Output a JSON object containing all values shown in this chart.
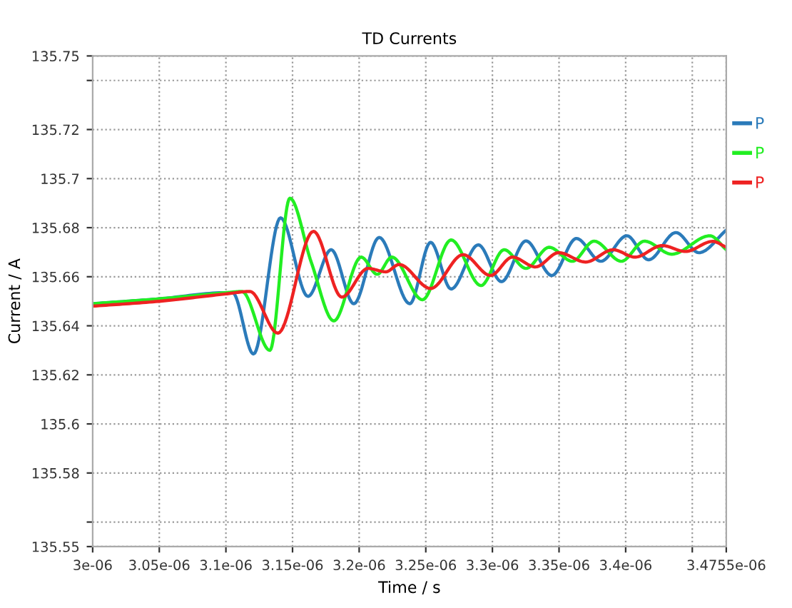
{
  "chart_data": {
    "type": "line",
    "title": "TD Currents",
    "xlabel": "Time / s",
    "ylabel": "Current / A",
    "xlim": [
      3e-06,
      3.4755e-06
    ],
    "ylim": [
      135.55,
      135.75
    ],
    "xticks": [
      3e-06,
      3.05e-06,
      3.1e-06,
      3.15e-06,
      3.2e-06,
      3.25e-06,
      3.3e-06,
      3.35e-06,
      3.4e-06,
      {
        "value": 3.45e-06,
        "label": null
      },
      3.4755e-06
    ],
    "yticks": [
      135.55,
      {
        "value": 135.56,
        "label": null
      },
      135.58,
      135.6,
      135.62,
      135.64,
      135.66,
      135.68,
      135.7,
      135.72,
      {
        "value": 135.74,
        "label": null
      },
      135.75
    ],
    "grid": true,
    "legend": "right",
    "marker": "none",
    "line_style": "solid",
    "series": [
      {
        "name": "P",
        "color": "#2b7bba",
        "x": [
          3e-06,
          3.05e-06,
          3.1e-06,
          3.105e-06,
          3.1207e-06,
          3.141e-06,
          3.1616e-06,
          3.179e-06,
          3.196e-06,
          3.215e-06,
          3.238e-06,
          3.2536e-06,
          3.269e-06,
          3.2894e-06,
          3.3068e-06,
          3.3252e-06,
          3.3446e-06,
          3.363e-06,
          3.3814e-06,
          3.4009e-06,
          3.4172e-06,
          3.4377e-06,
          3.455e-06,
          3.4755e-06
        ],
        "values": [
          135.649,
          135.651,
          135.6535,
          135.6535,
          135.6285,
          135.684,
          135.652,
          135.671,
          135.649,
          135.676,
          135.649,
          135.674,
          135.655,
          135.673,
          135.658,
          135.6746,
          135.6605,
          135.6756,
          135.6663,
          135.6767,
          135.6669,
          135.678,
          135.6698,
          135.679
        ]
      },
      {
        "name": "P",
        "color": "#22ee22",
        "x": [
          3e-06,
          3.05e-06,
          3.1e-06,
          3.112e-06,
          3.133e-06,
          3.148e-06,
          3.164e-06,
          3.181e-06,
          3.2015e-06,
          3.2135e-06,
          3.2245e-06,
          3.2475e-06,
          3.269e-06,
          3.2914e-06,
          3.3088e-06,
          3.3252e-06,
          3.3426e-06,
          3.36e-06,
          3.3763e-06,
          3.3968e-06,
          3.4141e-06,
          3.4346e-06,
          3.4632e-06,
          3.4755e-06
        ],
        "values": [
          135.649,
          135.651,
          135.6535,
          135.654,
          135.63,
          135.692,
          135.666,
          135.642,
          135.668,
          135.661,
          135.668,
          135.6506,
          135.675,
          135.6564,
          135.671,
          135.6634,
          135.672,
          135.6663,
          135.6745,
          135.6663,
          135.6745,
          135.6692,
          135.6767,
          135.671
        ]
      },
      {
        "name": "P",
        "color": "#ee2222",
        "x": [
          3e-06,
          3.05e-06,
          3.1e-06,
          3.118e-06,
          3.139e-06,
          3.1657e-06,
          3.187e-06,
          3.2066e-06,
          3.22e-06,
          3.23e-06,
          3.2536e-06,
          3.278e-06,
          3.2986e-06,
          3.315e-06,
          3.3323e-06,
          3.3497e-06,
          3.37e-06,
          3.3906e-06,
          3.407e-06,
          3.4274e-06,
          3.4448e-06,
          3.4653e-06,
          3.4755e-06
        ],
        "values": [
          135.648,
          135.65,
          135.653,
          135.654,
          135.637,
          135.6785,
          135.6517,
          135.6634,
          135.662,
          135.665,
          135.6552,
          135.669,
          135.6605,
          135.668,
          135.664,
          135.6698,
          135.666,
          135.671,
          135.668,
          135.6727,
          135.6703,
          135.6744,
          135.672
        ]
      }
    ]
  }
}
